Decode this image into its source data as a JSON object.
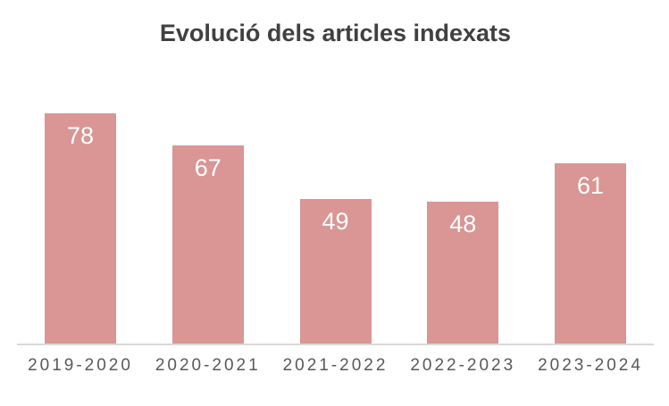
{
  "chart_data": {
    "type": "bar",
    "title": "Evolució dels articles indexats",
    "categories": [
      "2019-2020",
      "2020-2021",
      "2021-2022",
      "2022-2023",
      "2023-2024"
    ],
    "values": [
      78,
      67,
      49,
      48,
      61
    ],
    "xlabel": "",
    "ylabel": "",
    "ylim": [
      0,
      80
    ],
    "grid": false,
    "legend": false,
    "value_labels_position": "inside-end",
    "bar_color": "#d99694",
    "value_label_color": "#ffffff",
    "title_color": "#404040",
    "category_label_color": "#595959",
    "axis_line_color": "#d9d9d9",
    "background_color": "#ffffff"
  }
}
